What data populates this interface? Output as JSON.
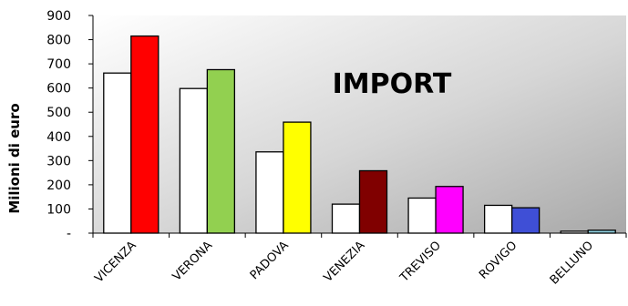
{
  "chart_data": {
    "type": "bar",
    "title": "IMPORT",
    "ylabel": "Milioni di euro",
    "xlabel": "",
    "ylim": [
      0,
      900
    ],
    "yticks": [
      0,
      100,
      200,
      300,
      400,
      500,
      600,
      700,
      800,
      900
    ],
    "ytick_labels": [
      "-",
      "100",
      "200",
      "300",
      "400",
      "500",
      "600",
      "700",
      "800",
      "900"
    ],
    "categories": [
      "VICENZA",
      "VERONA",
      "PADOVA",
      "VENEZIA",
      "TREVISO",
      "ROVIGO",
      "BELLUNO"
    ],
    "series": [
      {
        "values": [
          662,
          598,
          336,
          120,
          145,
          115,
          8
        ],
        "colors": [
          "#ffffff",
          "#ffffff",
          "#ffffff",
          "#ffffff",
          "#ffffff",
          "#ffffff",
          "#ffffff"
        ]
      },
      {
        "values": [
          815,
          676,
          459,
          258,
          193,
          105,
          12
        ],
        "colors": [
          "#ff0000",
          "#92d050",
          "#ffff00",
          "#800000",
          "#ff00ff",
          "#3f4fd6",
          "#8fd0e0"
        ]
      }
    ],
    "grid": false,
    "background": "gradient-white-to-grey"
  }
}
